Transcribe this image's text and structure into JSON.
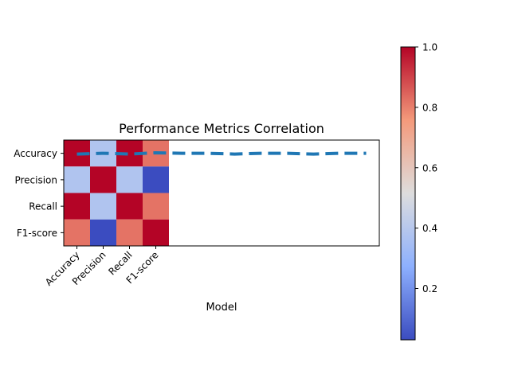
{
  "chart_data": {
    "type": "heatmap",
    "title": "Performance Metrics Correlation",
    "xlabel": "Model",
    "ylabel": "",
    "row_labels": [
      "Accuracy",
      "Precision",
      "Recall",
      "F1-score"
    ],
    "col_labels": [
      "Accuracy",
      "Precision",
      "Recall",
      "F1-score"
    ],
    "matrix": [
      [
        1.0,
        0.38,
        1.0,
        0.82
      ],
      [
        0.38,
        1.0,
        0.38,
        0.03
      ],
      [
        1.0,
        0.38,
        1.0,
        0.82
      ],
      [
        0.82,
        0.03,
        0.82,
        1.0
      ]
    ],
    "colormap": "coolwarm",
    "colorbar": {
      "range": [
        0.03,
        1.0
      ],
      "ticks": [
        "0.2",
        "0.4",
        "0.6",
        "0.8",
        "1.0"
      ]
    },
    "overlay_line": {
      "style": "dashed",
      "color": "#1f77b4",
      "x": [
        0,
        1,
        2,
        3,
        4,
        5,
        6,
        7,
        8,
        9,
        10,
        11
      ],
      "y": [
        0.03,
        0.0,
        0.03,
        -0.02,
        0.0,
        0.0,
        0.03,
        0.0,
        0.0,
        0.03,
        0.0,
        0.0
      ]
    },
    "xlim": [
      -0.5,
      11.5
    ],
    "ylim": [
      3.5,
      -0.5
    ]
  }
}
